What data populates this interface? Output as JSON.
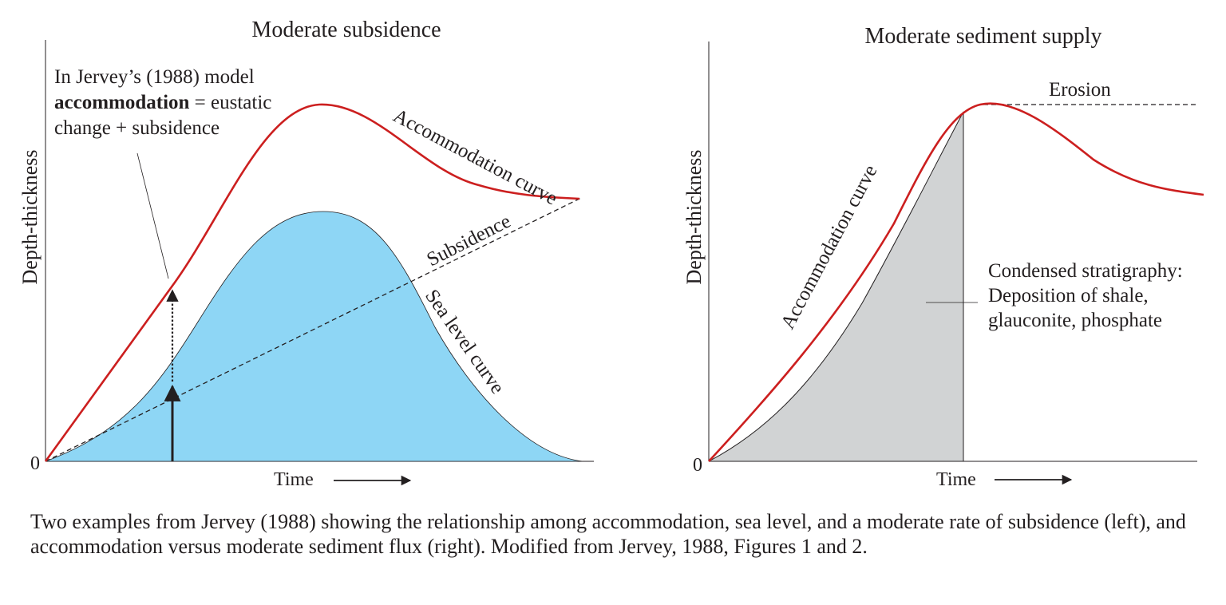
{
  "left_panel": {
    "title": "Moderate subsidence",
    "y_label": "Depth-thickness",
    "x_label": "Time",
    "origin_label": "0",
    "annotation_line1": "In Jervey’s (1988) model",
    "annotation_bold": "accommodation",
    "annotation_rest": " = eustatic",
    "annotation_line3": "change + subsidence",
    "accommodation_curve_label": "Accommodation curve",
    "subsidence_label": "Subsidence",
    "sea_level_curve_label": "Sea level curve"
  },
  "right_panel": {
    "title": "Moderate sediment supply",
    "y_label": "Depth-thickness",
    "x_label": "Time",
    "origin_label": "0",
    "erosion_label": "Erosion",
    "accommodation_curve_label": "Accommodation curve",
    "condensed_line1": "Condensed stratigraphy:",
    "condensed_line2": "Deposition of shale,",
    "condensed_line3": "glauconite, phosphate"
  },
  "caption": "Two examples from Jervey (1988) showing the relationship among accommodation, sea level, and a moderate rate of subsidence (left), and accommodation versus moderate sediment flux (right). Modified from Jervey, 1988, Figures 1 and 2.",
  "colors": {
    "accommodation_curve": "#cc1f1f",
    "sea_level_fill": "#8ed6f5",
    "sediment_fill": "#d1d3d4",
    "ink": "#231f20"
  }
}
